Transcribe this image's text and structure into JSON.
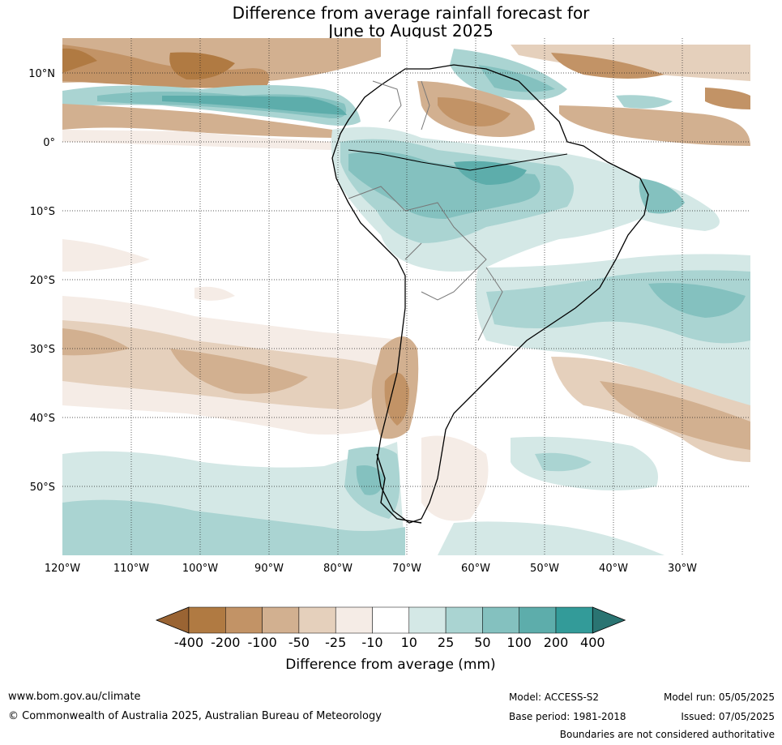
{
  "title": {
    "line1": "Difference from average rainfall forecast for",
    "line2": "June to August 2025"
  },
  "map": {
    "lat_labels": [
      "10°N",
      "0°",
      "10°S",
      "20°S",
      "30°S",
      "40°S",
      "50°S"
    ],
    "lon_labels": [
      "120°W",
      "110°W",
      "100°W",
      "90°W",
      "80°W",
      "70°W",
      "60°W",
      "50°W",
      "40°W",
      "30°W"
    ]
  },
  "colorbar": {
    "title": "Difference from average (mm)",
    "labels": [
      "-400",
      "-200",
      "-100",
      "-50",
      "-25",
      "-10",
      "10",
      "25",
      "50",
      "100",
      "200",
      "400"
    ],
    "colors": [
      "#9a6433",
      "#b07a42",
      "#c29366",
      "#d2b090",
      "#e5d0bc",
      "#f5ece6",
      "#ffffff",
      "#d4e8e6",
      "#aad4d2",
      "#84c1bf",
      "#5dadab",
      "#339b99",
      "#2a7472"
    ]
  },
  "footer": {
    "url": "www.bom.gov.au/climate",
    "copyright": "© Commonwealth of Australia 2025, Australian Bureau of Meteorology",
    "model": "Model: ACCESS-S2",
    "base_period": "Base period: 1981-2018",
    "model_run": "Model run: 05/05/2025",
    "issued": "Issued: 07/05/2025",
    "boundaries": "Boundaries are not considered authoritative"
  }
}
